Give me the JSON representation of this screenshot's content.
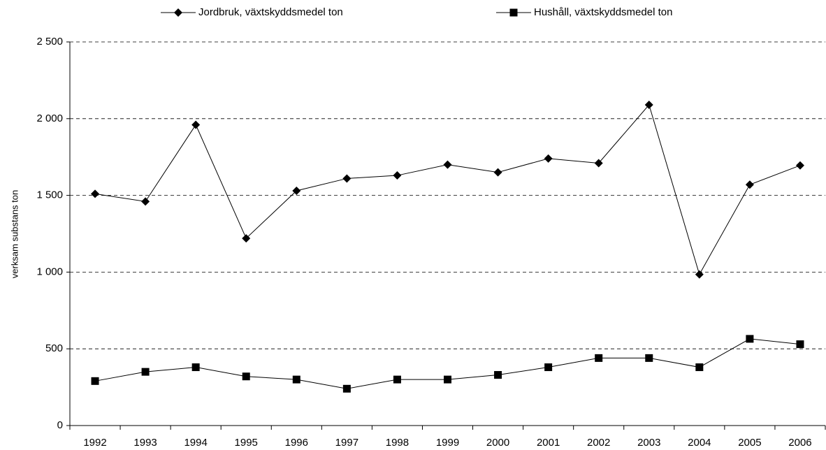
{
  "chart_data": {
    "type": "line",
    "y_label": "verksam substans ton",
    "categories": [
      "1992",
      "1993",
      "1994",
      "1995",
      "1996",
      "1997",
      "1998",
      "1999",
      "2000",
      "2001",
      "2002",
      "2003",
      "2004",
      "2005",
      "2006"
    ],
    "series": [
      {
        "name": "Jordbruk, växtskyddsmedel ton",
        "color": "#000000",
        "marker": "diamond",
        "values": [
          1510,
          1460,
          1960,
          1220,
          1530,
          1610,
          1630,
          1700,
          1650,
          1740,
          1710,
          2090,
          985,
          1570,
          1695
        ]
      },
      {
        "name": "Hushåll, växtskyddsmedel ton",
        "color": "#000000",
        "marker": "square",
        "values": [
          290,
          350,
          380,
          320,
          300,
          240,
          300,
          300,
          330,
          380,
          440,
          440,
          380,
          565,
          530
        ]
      }
    ],
    "ylim": [
      0,
      2500
    ],
    "yticks": [
      0,
      500,
      {
        "value": 1000,
        "label": "1 000"
      },
      {
        "value": 1500,
        "label": "1 500"
      },
      {
        "value": 2000,
        "label": "2 000"
      },
      {
        "value": 2500,
        "label": "2 500"
      }
    ],
    "grid": true,
    "legend": "top"
  }
}
